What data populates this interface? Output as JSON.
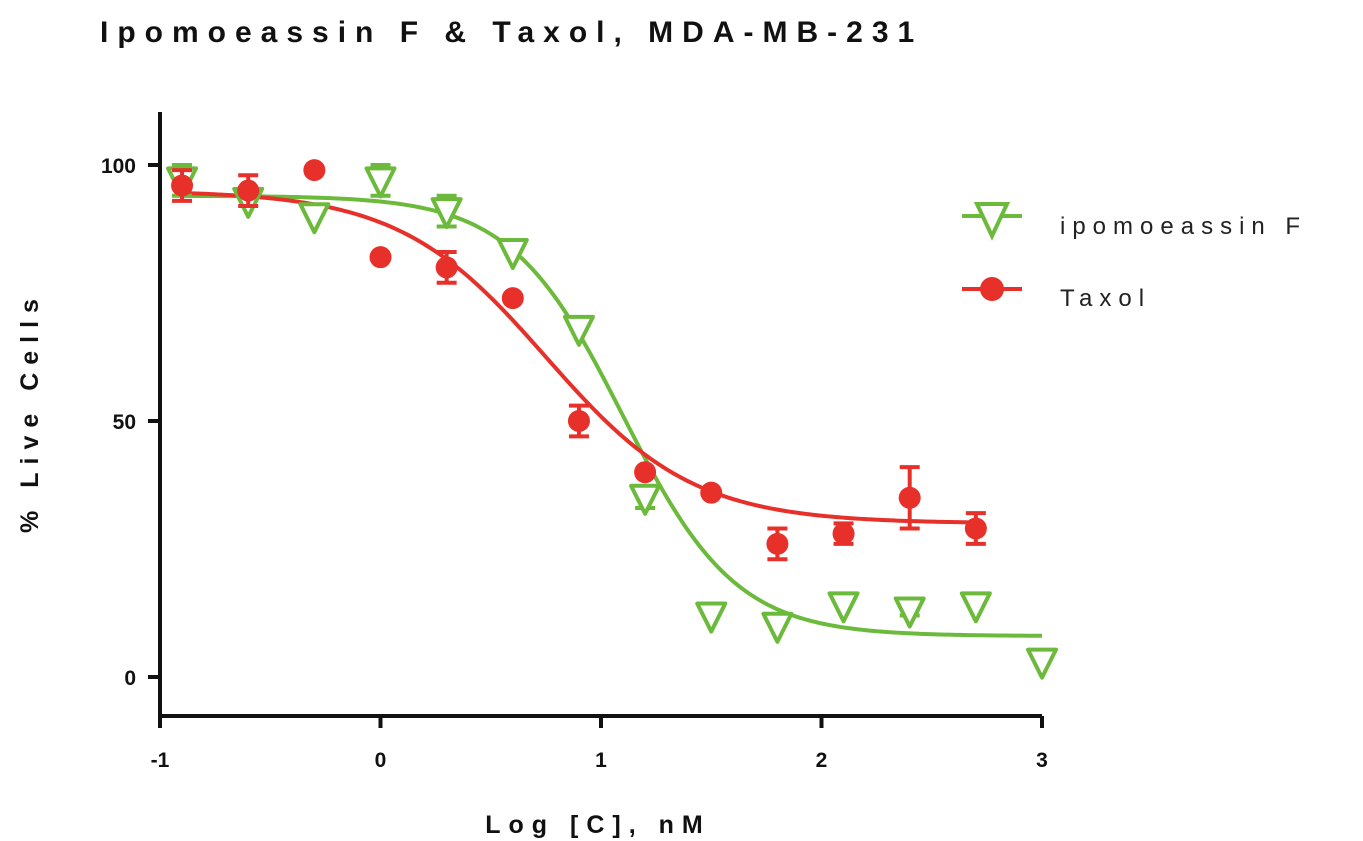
{
  "chart_data": {
    "type": "scatter",
    "title": "Ipomoeassin F & Taxol, MDA-MB-231",
    "xlabel": "Log [C], nM",
    "ylabel": "% Live Cells",
    "xlim": [
      -1,
      3
    ],
    "ylim": [
      -5,
      110
    ],
    "x_ticks": [
      -1,
      0,
      1,
      2,
      3
    ],
    "x_tick_labels": [
      "-1",
      "0",
      "1",
      "2",
      "3"
    ],
    "y_ticks": [
      0,
      50,
      100
    ],
    "y_tick_labels": [
      "0",
      "50",
      "100"
    ],
    "grid": false,
    "legend": {
      "placement": "right",
      "entries": [
        "ipomoeassin F",
        "Taxol"
      ]
    },
    "series": [
      {
        "name": "ipomoeassin F",
        "marker": "triangle-down-open",
        "color": "#6cba3c",
        "points": [
          {
            "x": -0.9,
            "y": 97,
            "err": 3
          },
          {
            "x": -0.6,
            "y": 93,
            "err": 0
          },
          {
            "x": -0.3,
            "y": 90,
            "err": 0
          },
          {
            "x": 0.0,
            "y": 97,
            "err": 3
          },
          {
            "x": 0.3,
            "y": 91,
            "err": 3
          },
          {
            "x": 0.6,
            "y": 83,
            "err": 0
          },
          {
            "x": 0.9,
            "y": 68,
            "err": 0
          },
          {
            "x": 1.2,
            "y": 35,
            "err": 2
          },
          {
            "x": 1.5,
            "y": 12,
            "err": 0
          },
          {
            "x": 1.8,
            "y": 10,
            "err": 0
          },
          {
            "x": 2.1,
            "y": 14,
            "err": 0
          },
          {
            "x": 2.4,
            "y": 13,
            "err": 1
          },
          {
            "x": 2.7,
            "y": 14,
            "err": 0
          },
          {
            "x": 3.0,
            "y": 3,
            "err": 0
          }
        ],
        "fit": {
          "top": 94,
          "bottom": 8,
          "logEC50": 1.1,
          "hill": 1.7
        }
      },
      {
        "name": "Taxol",
        "marker": "circle",
        "color": "#e8302b",
        "points": [
          {
            "x": -0.9,
            "y": 96,
            "err": 3
          },
          {
            "x": -0.6,
            "y": 95,
            "err": 3
          },
          {
            "x": -0.3,
            "y": 99,
            "err": 0
          },
          {
            "x": 0.0,
            "y": 82,
            "err": 0
          },
          {
            "x": 0.3,
            "y": 80,
            "err": 3
          },
          {
            "x": 0.6,
            "y": 74,
            "err": 0
          },
          {
            "x": 0.9,
            "y": 50,
            "err": 3
          },
          {
            "x": 1.2,
            "y": 40,
            "err": 0
          },
          {
            "x": 1.5,
            "y": 36,
            "err": 0
          },
          {
            "x": 1.8,
            "y": 26,
            "err": 3
          },
          {
            "x": 2.1,
            "y": 28,
            "err": 2
          },
          {
            "x": 2.4,
            "y": 35,
            "err": 6
          },
          {
            "x": 2.7,
            "y": 29,
            "err": 3
          }
        ],
        "fit": {
          "top": 95,
          "bottom": 30,
          "logEC50": 0.75,
          "hill": 1.3
        }
      }
    ],
    "axis_color": "#111111"
  }
}
